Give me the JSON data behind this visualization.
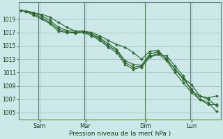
{
  "xlabel": "Pression niveau de la mer( hPa )",
  "background_color": "#cce8e8",
  "grid_color": "#aac8c8",
  "line_color": "#2d6a2d",
  "ylim": [
    1004.0,
    1021.5
  ],
  "yticks": [
    1005,
    1007,
    1009,
    1011,
    1013,
    1015,
    1017,
    1019
  ],
  "xlim": [
    -0.1,
    9.6
  ],
  "day_labels": [
    "Sam",
    "Mar",
    "Dim",
    "Lun"
  ],
  "day_positions": [
    0.9,
    3.1,
    6.0,
    8.2
  ],
  "vline_positions": [
    0.85,
    3.05,
    5.95,
    8.15
  ],
  "lines": [
    {
      "x": [
        0.0,
        0.25,
        0.6,
        1.0,
        1.4,
        1.8,
        2.2,
        2.6,
        3.0,
        3.4,
        3.8,
        4.2,
        4.6,
        5.0,
        5.4,
        5.8,
        6.2,
        6.6,
        7.0,
        7.4,
        7.8,
        8.2,
        8.6,
        9.0,
        9.4
      ],
      "y": [
        1020.3,
        1020.2,
        1020.0,
        1019.5,
        1018.8,
        1017.8,
        1017.3,
        1017.2,
        1017.2,
        1016.8,
        1016.2,
        1015.3,
        1014.5,
        1012.8,
        1012.2,
        1012.1,
        1013.8,
        1014.1,
        1013.1,
        1011.5,
        1010.0,
        1008.5,
        1007.0,
        1006.2,
        1006.2
      ]
    },
    {
      "x": [
        0.0,
        0.25,
        0.6,
        1.0,
        1.4,
        1.8,
        2.2,
        2.6,
        3.0,
        3.4,
        3.8,
        4.2,
        4.6,
        5.0,
        5.4,
        5.8,
        6.2,
        6.6,
        7.0,
        7.4,
        7.8,
        8.2,
        8.6,
        9.0,
        9.4
      ],
      "y": [
        1020.3,
        1020.2,
        1019.8,
        1019.2,
        1018.5,
        1017.5,
        1017.1,
        1017.0,
        1017.1,
        1016.7,
        1016.0,
        1015.0,
        1014.3,
        1012.5,
        1011.8,
        1012.0,
        1013.5,
        1013.8,
        1012.8,
        1011.0,
        1009.5,
        1008.0,
        1007.0,
        1006.5,
        1005.2
      ]
    },
    {
      "x": [
        0.0,
        0.25,
        0.6,
        1.0,
        1.4,
        1.8,
        2.2,
        2.6,
        3.0,
        3.4,
        3.8,
        4.2,
        4.6,
        5.0,
        5.4,
        5.8,
        6.2,
        6.6,
        7.0,
        7.4,
        7.8,
        8.2,
        8.6,
        9.0,
        9.4
      ],
      "y": [
        1020.3,
        1020.1,
        1019.6,
        1019.0,
        1018.3,
        1017.2,
        1017.0,
        1016.9,
        1017.0,
        1016.5,
        1015.8,
        1014.8,
        1014.0,
        1012.2,
        1011.5,
        1011.8,
        1013.3,
        1013.7,
        1013.5,
        1012.0,
        1010.5,
        1008.2,
        1007.5,
        1007.2,
        1007.5
      ]
    },
    {
      "x": [
        0.0,
        0.25,
        0.6,
        1.0,
        1.4,
        1.8,
        2.2,
        2.6,
        3.0,
        3.4,
        3.8,
        4.2,
        4.6,
        5.0,
        5.4,
        5.8,
        6.2,
        6.6,
        7.0,
        7.4,
        7.8,
        8.2,
        8.6,
        9.0,
        9.4
      ],
      "y": [
        1020.3,
        1020.2,
        1019.9,
        1019.7,
        1019.3,
        1018.5,
        1017.8,
        1017.2,
        1017.2,
        1017.0,
        1016.5,
        1015.8,
        1015.2,
        1014.8,
        1014.0,
        1013.0,
        1014.2,
        1014.3,
        1013.0,
        1011.5,
        1010.2,
        1009.2,
        1007.5,
        1007.0,
        1006.0
      ]
    }
  ]
}
